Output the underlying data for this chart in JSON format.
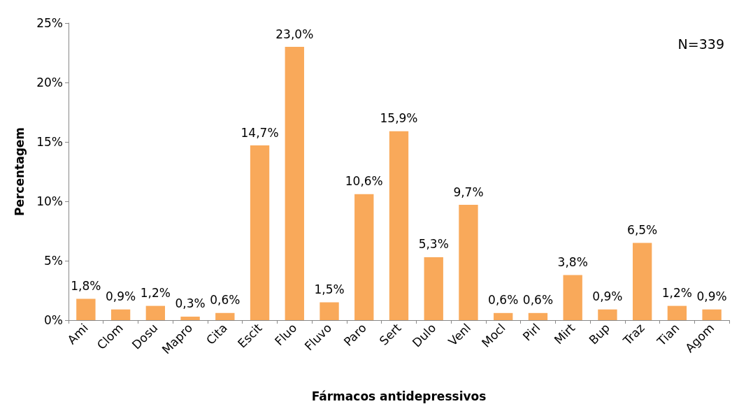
{
  "chart_data": {
    "type": "bar",
    "xlabel": "Fármacos antidepressivos",
    "ylabel": "Percentagem",
    "categories": [
      "Ami",
      "Clom",
      "Dosu",
      "Mapro",
      "Cita",
      "Escit",
      "Fluo",
      "Fluvo",
      "Paro",
      "Sert",
      "Dulo",
      "Venl",
      "Mocl",
      "Pirl",
      "Mirt",
      "Bup",
      "Traz",
      "Tian",
      "Agom"
    ],
    "values": [
      1.8,
      0.9,
      1.2,
      0.3,
      0.6,
      14.7,
      23.0,
      1.5,
      10.6,
      15.9,
      5.3,
      9.7,
      0.6,
      0.6,
      3.8,
      0.9,
      6.5,
      1.2,
      0.9
    ],
    "value_labels": [
      "1,8%",
      "0,9%",
      "1,2%",
      "0,3%",
      "0,6%",
      "14,7%",
      "23,0%",
      "1,5%",
      "10,6%",
      "15,9%",
      "5,3%",
      "9,7%",
      "0,6%",
      "0,6%",
      "3,8%",
      "0,9%",
      "6,5%",
      "1,2%",
      "0,9%"
    ],
    "color": "#f9a95a",
    "ylim": [
      0,
      25
    ],
    "yticks": [
      {
        "value": 0,
        "label": "0%"
      },
      {
        "value": 5,
        "label": "5%"
      },
      {
        "value": 10,
        "label": "10%"
      },
      {
        "value": 15,
        "label": "15%"
      },
      {
        "value": 20,
        "label": "20%"
      },
      {
        "value": 25,
        "label": "25%"
      }
    ],
    "grid": false,
    "annotations": [
      "N=339"
    ]
  }
}
